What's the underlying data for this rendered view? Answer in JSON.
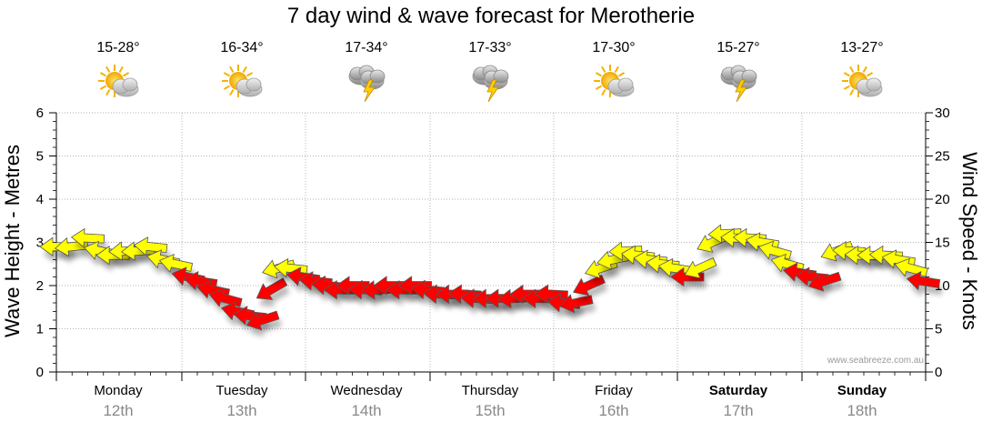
{
  "title": "7 day wind & wave forecast for Merotherie",
  "y_label": "Wave Height - Metres",
  "y2_label": "Wind Speed - Knots",
  "watermark": "www.seabreeze.com.au",
  "days": [
    {
      "name": "Monday",
      "date": "12th",
      "temp": "15-28°",
      "icon": "partly-cloudy-icon",
      "bold": false
    },
    {
      "name": "Tuesday",
      "date": "13th",
      "temp": "16-34°",
      "icon": "partly-cloudy-icon",
      "bold": false
    },
    {
      "name": "Wednesday",
      "date": "14th",
      "temp": "17-34°",
      "icon": "thunderstorm-icon",
      "bold": false
    },
    {
      "name": "Thursday",
      "date": "15th",
      "temp": "17-33°",
      "icon": "thunderstorm-icon",
      "bold": false
    },
    {
      "name": "Friday",
      "date": "16th",
      "temp": "17-30°",
      "icon": "partly-cloudy-icon",
      "bold": false
    },
    {
      "name": "Saturday",
      "date": "17th",
      "temp": "15-27°",
      "icon": "thunderstorm-icon",
      "bold": true
    },
    {
      "name": "Sunday",
      "date": "18th",
      "temp": "13-27°",
      "icon": "partly-cloudy-icon",
      "bold": true
    }
  ],
  "colors": {
    "light": "#ffff00",
    "strong": "#ff0000",
    "outline": "#555555",
    "grid": "#999999"
  },
  "chart_data": {
    "type": "line",
    "title": "7 day wind & wave forecast for Merotherie",
    "ylabel": "Wave Height - Metres",
    "y2label": "Wind Speed - Knots",
    "ylim": [
      0,
      6
    ],
    "y2lim": [
      0,
      30
    ],
    "yticks": [
      0,
      1,
      2,
      3,
      4,
      5,
      6
    ],
    "y2ticks": [
      0,
      5,
      10,
      15,
      20,
      25,
      30
    ],
    "x_unit": "days",
    "xlim": [
      0,
      7
    ],
    "grid": true,
    "series": [
      {
        "name": "Wind Speed (knots)",
        "axis": "right",
        "points": [
          [
            0.0,
            14.5
          ],
          [
            0.12,
            14.5
          ],
          [
            0.25,
            15.5
          ],
          [
            0.35,
            14.0
          ],
          [
            0.45,
            13.5
          ],
          [
            0.55,
            14.0
          ],
          [
            0.65,
            14.0
          ],
          [
            0.75,
            14.5
          ],
          [
            0.85,
            13.0
          ],
          [
            0.95,
            12.5
          ],
          [
            1.05,
            11.0
          ],
          [
            1.15,
            10.5
          ],
          [
            1.25,
            9.5
          ],
          [
            1.35,
            8.5
          ],
          [
            1.45,
            7.0
          ],
          [
            1.55,
            6.5
          ],
          [
            1.65,
            6.0
          ],
          [
            1.72,
            9.5
          ],
          [
            1.78,
            12.0
          ],
          [
            1.88,
            12.0
          ],
          [
            1.98,
            11.0
          ],
          [
            2.08,
            10.5
          ],
          [
            2.18,
            10.0
          ],
          [
            2.28,
            9.5
          ],
          [
            2.38,
            10.0
          ],
          [
            2.48,
            9.5
          ],
          [
            2.58,
            9.5
          ],
          [
            2.68,
            10.0
          ],
          [
            2.78,
            9.5
          ],
          [
            2.88,
            10.0
          ],
          [
            2.98,
            9.5
          ],
          [
            3.08,
            9.0
          ],
          [
            3.18,
            9.0
          ],
          [
            3.28,
            9.0
          ],
          [
            3.38,
            8.5
          ],
          [
            3.48,
            8.5
          ],
          [
            3.58,
            8.5
          ],
          [
            3.68,
            8.5
          ],
          [
            3.78,
            9.0
          ],
          [
            3.88,
            8.5
          ],
          [
            3.98,
            9.0
          ],
          [
            4.08,
            8.0
          ],
          [
            4.18,
            8.0
          ],
          [
            4.28,
            10.0
          ],
          [
            4.38,
            12.0
          ],
          [
            4.48,
            13.0
          ],
          [
            4.58,
            14.0
          ],
          [
            4.68,
            13.5
          ],
          [
            4.78,
            13.0
          ],
          [
            4.88,
            12.5
          ],
          [
            4.98,
            12.0
          ],
          [
            5.08,
            11.0
          ],
          [
            5.18,
            12.0
          ],
          [
            5.28,
            15.0
          ],
          [
            5.38,
            16.0
          ],
          [
            5.48,
            15.5
          ],
          [
            5.58,
            15.5
          ],
          [
            5.68,
            15.0
          ],
          [
            5.78,
            14.0
          ],
          [
            5.88,
            12.5
          ],
          [
            5.98,
            11.5
          ],
          [
            6.08,
            11.0
          ],
          [
            6.18,
            10.5
          ],
          [
            6.28,
            14.0
          ],
          [
            6.38,
            14.0
          ],
          [
            6.48,
            13.5
          ],
          [
            6.58,
            13.5
          ],
          [
            6.68,
            13.5
          ],
          [
            6.78,
            13.0
          ],
          [
            6.88,
            12.0
          ],
          [
            6.98,
            10.5
          ]
        ]
      }
    ]
  }
}
